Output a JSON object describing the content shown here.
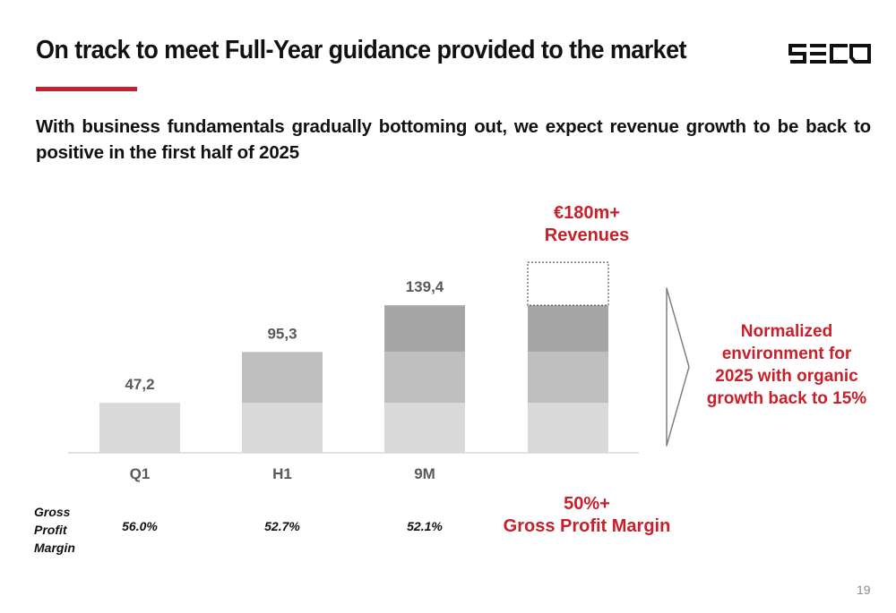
{
  "header": {
    "title": "On track to meet Full-Year guidance provided to the market",
    "logo_text": "SECO",
    "accent_color": "#c8202a"
  },
  "subtitle": "With business fundamentals gradually bottoming out, we expect revenue growth to be back to positive in the first half of 2025",
  "chart_data": {
    "type": "bar",
    "stacked": true,
    "categories": [
      "Q1",
      "H1",
      "9M",
      ""
    ],
    "series": [
      {
        "values": [
          47.2,
          47.2,
          47.2,
          47.2
        ],
        "color": "#d9d9d9"
      },
      {
        "values": [
          0,
          48.1,
          48.1,
          48.1
        ],
        "color": "#bfbfbf"
      },
      {
        "values": [
          0,
          0,
          44.1,
          44.1
        ],
        "color": "#a6a6a6"
      },
      {
        "values": [
          0,
          0,
          0,
          40.6
        ],
        "color": "#ffffff",
        "dashed_outline": true
      }
    ],
    "totals": [
      47.2,
      95.3,
      139.4,
      180
    ],
    "data_labels": [
      "47,2",
      "95,3",
      "139,4"
    ],
    "gross_profit_margin": [
      "56.0%",
      "52.7%",
      "52.1%"
    ]
  },
  "guidance": {
    "revenue_line1": "€180m+",
    "revenue_line2": "Revenues",
    "margin_line1": "50%+",
    "margin_line2": "Gross Profit Margin"
  },
  "gpm_label": [
    "Gross",
    "Profit",
    "Margin"
  ],
  "arrow_note": [
    "Normalized",
    "environment for",
    "2025 with organic",
    "growth back to 15%"
  ],
  "page_number": "19"
}
